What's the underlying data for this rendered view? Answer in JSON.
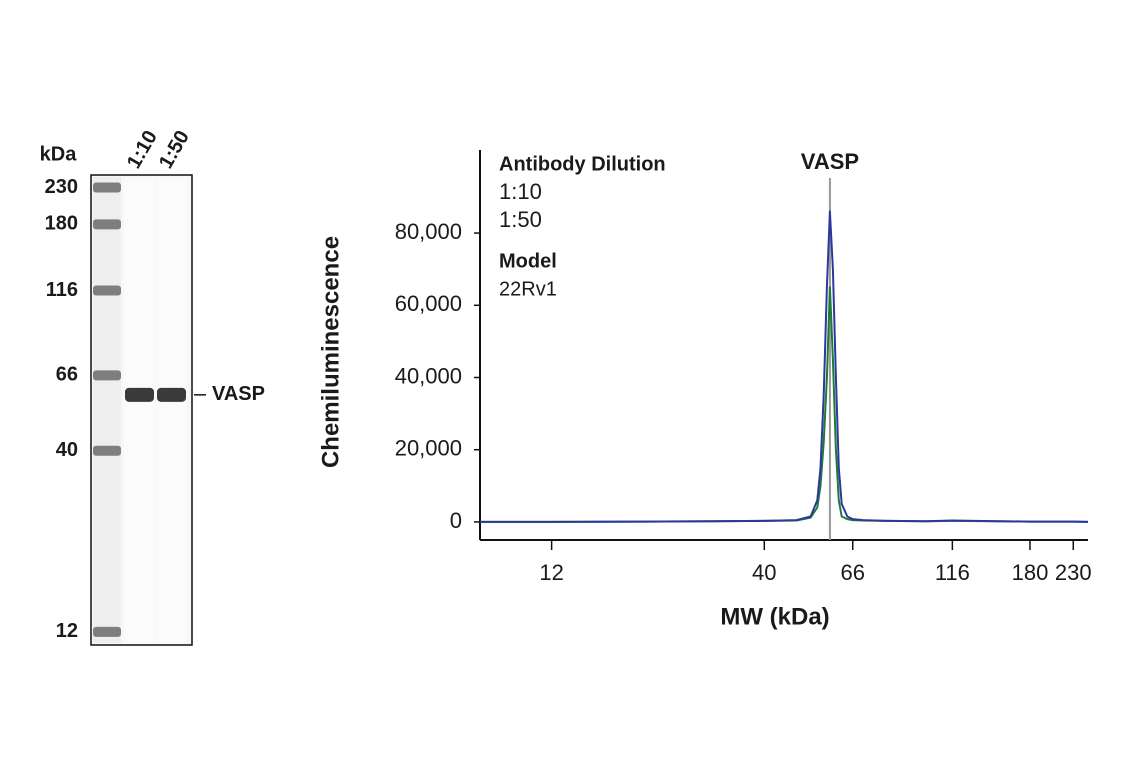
{
  "chart_data": [
    {
      "type": "blot",
      "unit_label": "kDa",
      "lanes": [
        "1:10",
        "1:50"
      ],
      "yscale": "log",
      "ylim": [
        11,
        250
      ],
      "yticks": [
        230,
        180,
        116,
        66,
        40,
        12
      ],
      "band_label": "VASP",
      "band_values": [
        58,
        58
      ],
      "ladder_color": "#6a6a6a",
      "band_color": "#3a3a3a"
    },
    {
      "type": "line",
      "xlabel": "MW (kDa)",
      "ylabel": "Chemiluminescence",
      "xscale": "log",
      "xlim": [
        8,
        250
      ],
      "xticks": [
        12,
        40,
        66,
        116,
        180,
        230
      ],
      "ylim": [
        -5000,
        103000
      ],
      "yticks": [
        0,
        {
          "value": 20000,
          "label": "20,000"
        },
        {
          "value": 40000,
          "label": "40,000"
        },
        {
          "value": 60000,
          "label": "60,000"
        },
        {
          "value": 80000,
          "label": "80,000"
        }
      ],
      "legend_title": "Antibody Dilution",
      "model_title": "Model",
      "model": "22Rv1",
      "annotation": {
        "text": "VASP",
        "x": 58
      },
      "x": [
        8,
        12,
        20,
        30,
        40,
        48,
        52,
        54,
        55,
        56,
        57,
        58,
        59,
        60,
        61,
        62,
        64,
        66,
        70,
        80,
        100,
        116,
        150,
        180,
        230,
        250
      ],
      "series": [
        {
          "name": "1:10",
          "color": "#2b3a9a",
          "values": [
            0,
            0,
            100,
            200,
            300,
            500,
            1500,
            6000,
            15000,
            35000,
            65000,
            86000,
            70000,
            40000,
            15000,
            5000,
            1500,
            800,
            500,
            300,
            200,
            400,
            200,
            100,
            100,
            0
          ]
        },
        {
          "name": "1:50",
          "color": "#1e7a3a",
          "values": [
            0,
            0,
            100,
            200,
            300,
            400,
            1200,
            4000,
            10000,
            22000,
            40000,
            65000,
            45000,
            20000,
            6000,
            1500,
            800,
            500,
            400,
            300,
            200,
            300,
            200,
            100,
            100,
            0
          ]
        }
      ]
    }
  ]
}
